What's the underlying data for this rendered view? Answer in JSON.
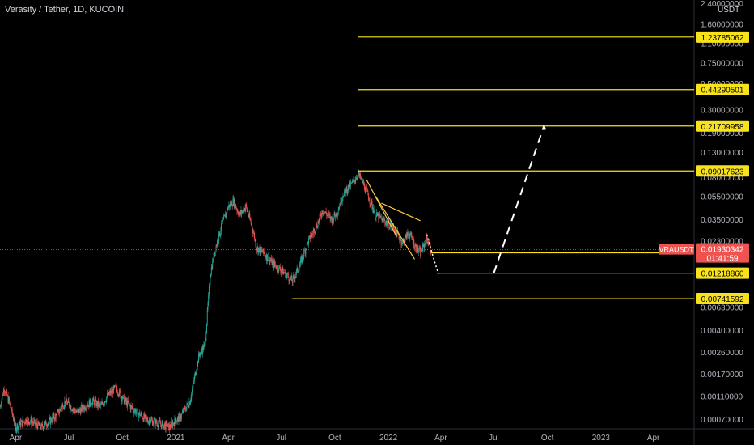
{
  "header": {
    "symbol_title": "Verasity / Tether, 1D, KUCOIN",
    "currency_label": "USDT"
  },
  "colors": {
    "background": "#000000",
    "level_line": "#f7e21b",
    "up": "#26a69a",
    "down": "#ef5350",
    "pattern": "#f7c948",
    "projection": "#ffffff",
    "price_label": "#ef5350",
    "axis_text": "#b2b5be"
  },
  "chart_data": {
    "type": "candlestick",
    "title": "Verasity / Tether, 1D, KUCOIN",
    "y_scale": "log",
    "y_range": [
      0.00058,
      2.4
    ],
    "x_range": [
      "2020-03-05",
      "2023-06-10"
    ],
    "y_ticks": [
      "2.40000000",
      "1.60000000",
      "1.10000000",
      "0.75000000",
      "0.50000000",
      "0.30000000",
      "0.19000000",
      "0.13000000",
      "0.08000000",
      "0.05500000",
      "0.03500000",
      "0.02300000",
      "0.00630000",
      "0.00400000",
      "0.00260000",
      "0.00170000",
      "0.00110000",
      "0.00070000"
    ],
    "x_ticks": [
      {
        "label": "Apr",
        "date": "2020-04-01"
      },
      {
        "label": "Jul",
        "date": "2020-07-01"
      },
      {
        "label": "Oct",
        "date": "2020-10-01"
      },
      {
        "label": "2021",
        "date": "2021-01-01"
      },
      {
        "label": "Apr",
        "date": "2021-04-01"
      },
      {
        "label": "Jul",
        "date": "2021-07-01"
      },
      {
        "label": "Oct",
        "date": "2021-10-01"
      },
      {
        "label": "2022",
        "date": "2022-01-01"
      },
      {
        "label": "Apr",
        "date": "2022-04-01"
      },
      {
        "label": "Jul",
        "date": "2022-07-01"
      },
      {
        "label": "Oct",
        "date": "2022-10-01"
      },
      {
        "label": "2023",
        "date": "2023-01-01"
      },
      {
        "label": "Apr",
        "date": "2023-04-01"
      }
    ],
    "price_path": [
      [
        "2020-03-05",
        0.0009
      ],
      [
        "2020-03-12",
        0.0013
      ],
      [
        "2020-03-20",
        0.001
      ],
      [
        "2020-04-01",
        0.0006
      ],
      [
        "2020-04-20",
        0.0007
      ],
      [
        "2020-05-15",
        0.0006
      ],
      [
        "2020-06-10",
        0.00075
      ],
      [
        "2020-06-25",
        0.001
      ],
      [
        "2020-07-15",
        0.0008
      ],
      [
        "2020-08-10",
        0.001
      ],
      [
        "2020-08-25",
        0.0009
      ],
      [
        "2020-09-05",
        0.0011
      ],
      [
        "2020-09-20",
        0.0013
      ],
      [
        "2020-10-05",
        0.001
      ],
      [
        "2020-10-20",
        0.00085
      ],
      [
        "2020-11-10",
        0.0007
      ],
      [
        "2020-12-01",
        0.00065
      ],
      [
        "2020-12-20",
        0.0006
      ],
      [
        "2021-01-10",
        0.00075
      ],
      [
        "2021-01-25",
        0.001
      ],
      [
        "2021-02-10",
        0.0025
      ],
      [
        "2021-02-20",
        0.003
      ],
      [
        "2021-03-01",
        0.012
      ],
      [
        "2021-03-10",
        0.02
      ],
      [
        "2021-03-20",
        0.03
      ],
      [
        "2021-04-01",
        0.045
      ],
      [
        "2021-04-10",
        0.05
      ],
      [
        "2021-04-20",
        0.038
      ],
      [
        "2021-05-01",
        0.045
      ],
      [
        "2021-05-12",
        0.03
      ],
      [
        "2021-05-20",
        0.02
      ],
      [
        "2021-06-01",
        0.018
      ],
      [
        "2021-06-15",
        0.015
      ],
      [
        "2021-07-01",
        0.013
      ],
      [
        "2021-07-20",
        0.0105
      ],
      [
        "2021-08-01",
        0.014
      ],
      [
        "2021-08-15",
        0.022
      ],
      [
        "2021-09-01",
        0.032
      ],
      [
        "2021-09-10",
        0.042
      ],
      [
        "2021-09-25",
        0.035
      ],
      [
        "2021-10-05",
        0.04
      ],
      [
        "2021-10-15",
        0.058
      ],
      [
        "2021-11-01",
        0.072
      ],
      [
        "2021-11-10",
        0.085
      ],
      [
        "2021-11-20",
        0.068
      ],
      [
        "2021-12-01",
        0.05
      ],
      [
        "2021-12-10",
        0.038
      ],
      [
        "2021-12-25",
        0.034
      ],
      [
        "2022-01-10",
        0.03
      ],
      [
        "2022-01-25",
        0.022
      ],
      [
        "2022-02-05",
        0.027
      ],
      [
        "2022-02-15",
        0.021
      ],
      [
        "2022-02-25",
        0.018
      ],
      [
        "2022-03-08",
        0.024
      ],
      [
        "2022-03-15",
        0.0193
      ]
    ],
    "horizontal_levels": [
      {
        "label": "1.23785062",
        "value": 1.23785062,
        "from": "2021-11-10"
      },
      {
        "label": "0.44290501",
        "value": 0.44290501,
        "from": "2021-11-10"
      },
      {
        "label": "0.21709958",
        "value": 0.21709958,
        "from": "2021-11-10"
      },
      {
        "label": "0.09017623",
        "value": 0.09017623,
        "from": "2021-11-10"
      },
      {
        "label": "0.01813608",
        "value": 0.01813608,
        "from": "2022-03-15"
      },
      {
        "label": "0.01218860",
        "value": 0.0121886,
        "from": "2022-03-25"
      },
      {
        "label": "0.00741592",
        "value": 0.00741592,
        "from": "2021-07-20"
      }
    ],
    "current_price": {
      "symbol": "VRAUSDT",
      "value": "0.01930342",
      "countdown": "01:41:59",
      "number": 0.01930342
    },
    "pattern_lines": [
      [
        [
          "2021-11-25",
          0.075
        ],
        [
          "2022-01-15",
          0.025
        ]
      ],
      [
        [
          "2021-12-20",
          0.048
        ],
        [
          "2022-02-25",
          0.034
        ]
      ],
      [
        [
          "2021-12-10",
          0.055
        ],
        [
          "2022-02-15",
          0.016
        ]
      ]
    ],
    "projection_path": [
      [
        "2022-03-08",
        0.026
      ],
      [
        "2022-03-20",
        0.016
      ],
      [
        "2022-03-28",
        0.012
      ],
      [
        "2022-07-01",
        0.0122
      ],
      [
        "2022-09-25",
        0.217
      ],
      [
        "2022-09-30",
        0.19
      ]
    ]
  }
}
